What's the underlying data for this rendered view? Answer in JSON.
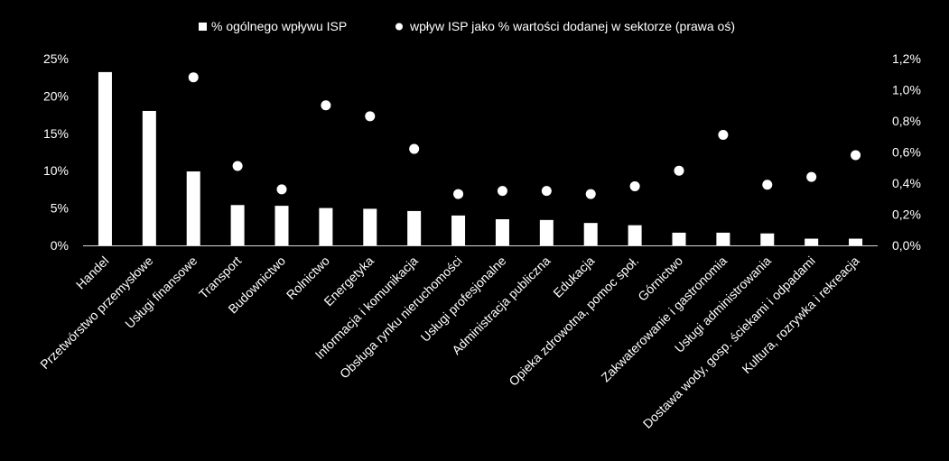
{
  "chart_data": {
    "type": "bar",
    "categories": [
      "Handel",
      "Przetwórstwo przemysłowe",
      "Usługi finansowe",
      "Transport",
      "Budownictwo",
      "Rolnictwo",
      "Energetyka",
      "Informacja i komunikacja",
      "Obsługa rynku nieruchomości",
      "Usługi profesjonalne",
      "Administracja publiczna",
      "Edukacja",
      "Opieka zdrowotna, pomoc społ.",
      "Górnictwo",
      "Zakwaterowanie i gastronomia",
      "Usługi administrowania",
      "Dostawa wody, gosp. ściekami i odpadami",
      "Kultura, rozrywka i rekreacja"
    ],
    "series": [
      {
        "name": "% ogólnego wpływu ISP",
        "type": "bar",
        "axis": "left",
        "values": [
          23.2,
          18.0,
          9.9,
          5.4,
          5.3,
          5.0,
          4.9,
          4.6,
          4.0,
          3.5,
          3.4,
          3.0,
          2.7,
          1.7,
          1.7,
          1.6,
          0.9,
          0.9
        ]
      },
      {
        "name": "wpływ ISP jako % wartości dodanej w sektorze (prawa oś)",
        "type": "scatter",
        "axis": "right",
        "values": [
          null,
          null,
          1.08,
          0.51,
          0.36,
          0.9,
          0.83,
          0.62,
          0.33,
          0.35,
          0.35,
          0.33,
          0.38,
          0.48,
          0.71,
          0.39,
          0.44,
          0.58
        ]
      }
    ],
    "y_left": {
      "ylim": [
        0,
        25
      ],
      "ticks": [
        "0%",
        "5%",
        "10%",
        "15%",
        "20%",
        "25%"
      ]
    },
    "y_right": {
      "ylim": [
        0,
        1.2
      ],
      "ticks": [
        "0,0%",
        "0,2%",
        "0,4%",
        "0,6%",
        "0,8%",
        "1,0%",
        "1,2%"
      ]
    },
    "legend_position": "top-center",
    "grid": false,
    "colors": {
      "background": "#000000",
      "bars": "#ffffff",
      "markers": "#ffffff",
      "text": "#ffffff",
      "axis": "#d9d9d9"
    }
  }
}
